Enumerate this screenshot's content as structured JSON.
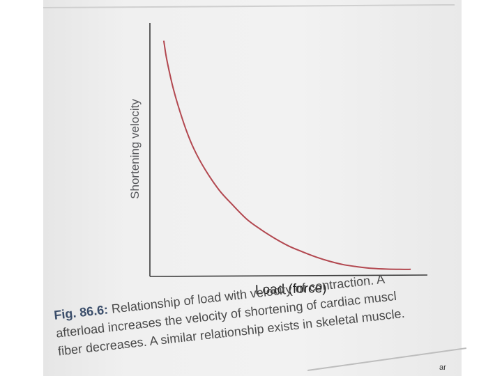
{
  "chart_data": {
    "type": "line",
    "title": "",
    "xlabel": "Load (force)",
    "ylabel": "Shortening velocity",
    "grid": false,
    "legend": "none",
    "line_color": "#b2474f",
    "axis_color": "#3a3a3a",
    "x_ticks": [],
    "y_ticks": [],
    "xlim": [
      0,
      100
    ],
    "ylim": [
      0,
      100
    ],
    "series": [
      {
        "name": "",
        "x": [
          5,
          6,
          8,
          10,
          13,
          16,
          20,
          25,
          30,
          35,
          40,
          45,
          50,
          55,
          60,
          65,
          70,
          75,
          80,
          85,
          90,
          94
        ],
        "y": [
          93,
          86,
          76,
          68,
          58,
          50,
          42,
          34,
          28,
          22.5,
          18.5,
          15,
          12,
          9.7,
          7.6,
          5.9,
          4.6,
          3.8,
          3.2,
          2.9,
          2.8,
          2.8
        ]
      }
    ]
  },
  "caption": {
    "label": "Fig. 86.6:",
    "line1": "Relationship of load with velocity of contraction. A",
    "line2": "afterload increases the velocity of shortening of cardiac muscl",
    "line3": "fiber decreases. A similar relationship exists in skeletal muscle."
  },
  "corner_text": "ar"
}
